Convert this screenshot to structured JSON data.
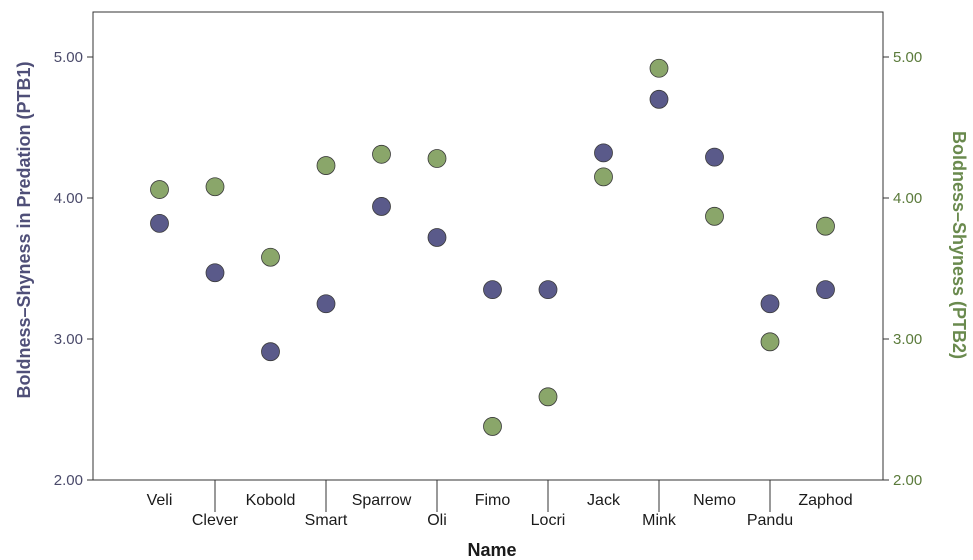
{
  "chart_data": {
    "type": "scatter",
    "xlabel": "Name",
    "ylabel_left": "Boldness–Shyness in Predation (PTB1)",
    "ylabel_right": "Boldness–Shyness (PTB2)",
    "ylim": [
      2.0,
      5.0
    ],
    "yticks": [
      "2.00",
      "3.00",
      "4.00",
      "5.00"
    ],
    "grid": false,
    "colors": {
      "PTB1": "#5a5a8a",
      "PTB2": "#8aa66a"
    },
    "categories": [
      "Veli",
      "Clever",
      "Kobold",
      "Smart",
      "Sparrow",
      "Oli",
      "Fimo",
      "Locri",
      "Jack",
      "Mink",
      "Nemo",
      "Pandu",
      "Zaphod"
    ],
    "series": [
      {
        "name": "PTB1",
        "axis": "left",
        "values": [
          3.82,
          3.47,
          2.91,
          3.25,
          3.94,
          3.72,
          3.35,
          3.35,
          4.32,
          4.7,
          4.29,
          3.25,
          3.35
        ]
      },
      {
        "name": "PTB2",
        "axis": "right",
        "values": [
          4.06,
          4.08,
          3.58,
          4.23,
          4.31,
          4.28,
          2.38,
          2.59,
          4.15,
          4.92,
          3.87,
          2.98,
          3.8
        ]
      }
    ]
  }
}
